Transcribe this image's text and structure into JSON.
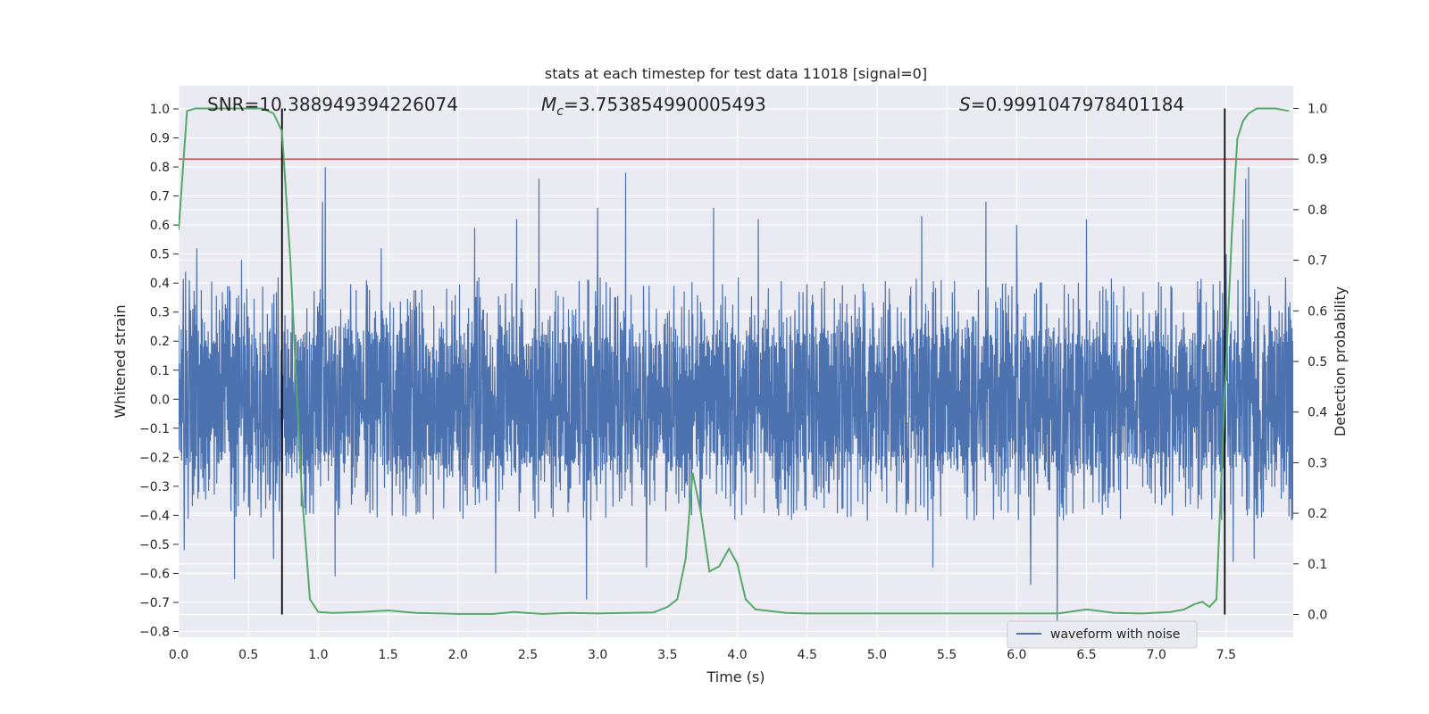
{
  "chart_data": {
    "type": "line",
    "title": "stats at each timestep for test data 11018 [signal=0]",
    "xlabel": "Time (s)",
    "ylabel": "Whitened strain",
    "y2label": "Detection probability",
    "xlim": [
      0,
      7.98
    ],
    "ylim": [
      -0.82,
      1.08
    ],
    "y2lim": [
      -0.045,
      1.045
    ],
    "xticks": [
      "0.0",
      "0.5",
      "1.0",
      "1.5",
      "2.0",
      "2.5",
      "3.0",
      "3.5",
      "4.0",
      "4.5",
      "5.0",
      "5.5",
      "6.0",
      "6.5",
      "7.0",
      "7.5"
    ],
    "yticks": [
      "1.0",
      "0.9",
      "0.8",
      "0.7",
      "0.6",
      "0.5",
      "0.4",
      "0.3",
      "0.2",
      "0.1",
      "0.0",
      "−0.1",
      "−0.2",
      "−0.3",
      "−0.4",
      "−0.5",
      "−0.6",
      "−0.7",
      "−0.8"
    ],
    "y2ticks": [
      "1.0",
      "0.9",
      "0.8",
      "0.7",
      "0.6",
      "0.5",
      "0.4",
      "0.3",
      "0.2",
      "0.1",
      "0.0"
    ],
    "grid": true,
    "legend_position": "lower-right",
    "annotations": {
      "snr": "SNR=10.388949394226074",
      "mc_symbol": "M",
      "mc_sub": "c",
      "mc_value": "=3.753854990005493",
      "s_symbol": "S",
      "s_value": "=0.9991047978401184"
    },
    "threshold_probability": 0.9,
    "vertical_lines_x": [
      0.74,
      7.49
    ],
    "series": [
      {
        "name": "waveform with noise",
        "kind": "noise",
        "color": "#4c72b0",
        "envelope": {
          "typical_max": 0.42,
          "typical_min": -0.43,
          "peaks": [
            {
              "x": 0.05,
              "y": 0.44
            },
            {
              "x": 0.13,
              "y": 0.52
            },
            {
              "x": 0.45,
              "y": 0.48
            },
            {
              "x": 1.03,
              "y": 0.68
            },
            {
              "x": 1.05,
              "y": 0.8
            },
            {
              "x": 1.45,
              "y": 0.52
            },
            {
              "x": 2.12,
              "y": 0.59
            },
            {
              "x": 2.42,
              "y": 0.62
            },
            {
              "x": 2.58,
              "y": 0.76
            },
            {
              "x": 3.0,
              "y": 0.66
            },
            {
              "x": 3.2,
              "y": 0.78
            },
            {
              "x": 3.83,
              "y": 0.66
            },
            {
              "x": 4.15,
              "y": 0.62
            },
            {
              "x": 5.32,
              "y": 0.63
            },
            {
              "x": 5.78,
              "y": 0.68
            },
            {
              "x": 6.0,
              "y": 0.6
            },
            {
              "x": 6.5,
              "y": 0.62
            },
            {
              "x": 7.5,
              "y": 0.5
            },
            {
              "x": 7.62,
              "y": 0.62
            },
            {
              "x": 7.64,
              "y": 0.76
            },
            {
              "x": 7.66,
              "y": 0.8
            }
          ],
          "troughs": [
            {
              "x": 0.04,
              "y": -0.52
            },
            {
              "x": 0.4,
              "y": -0.62
            },
            {
              "x": 0.68,
              "y": -0.55
            },
            {
              "x": 1.12,
              "y": -0.61
            },
            {
              "x": 2.27,
              "y": -0.6
            },
            {
              "x": 2.92,
              "y": -0.69
            },
            {
              "x": 3.35,
              "y": -0.58
            },
            {
              "x": 5.4,
              "y": -0.58
            },
            {
              "x": 6.1,
              "y": -0.64
            },
            {
              "x": 6.29,
              "y": -0.77
            },
            {
              "x": 7.55,
              "y": -0.56
            },
            {
              "x": 7.7,
              "y": -0.55
            }
          ]
        }
      },
      {
        "name": "",
        "kind": "probability",
        "color": "#55a868",
        "x": [
          0.0,
          0.06,
          0.12,
          0.5,
          0.6,
          0.68,
          0.74,
          0.8,
          0.88,
          0.94,
          1.0,
          1.1,
          1.3,
          1.5,
          1.7,
          2.0,
          2.25,
          2.4,
          2.6,
          2.8,
          3.0,
          3.2,
          3.4,
          3.5,
          3.57,
          3.63,
          3.68,
          3.74,
          3.8,
          3.87,
          3.94,
          4.0,
          4.06,
          4.13,
          4.2,
          4.35,
          4.5,
          5.0,
          5.5,
          6.0,
          6.3,
          6.5,
          6.7,
          6.9,
          7.1,
          7.2,
          7.27,
          7.33,
          7.38,
          7.43,
          7.47,
          7.5,
          7.54,
          7.58,
          7.62,
          7.66,
          7.72,
          7.8,
          7.85,
          7.95
        ],
        "y": [
          0.76,
          0.995,
          1.0,
          1.0,
          1.0,
          0.99,
          0.955,
          0.7,
          0.25,
          0.03,
          0.005,
          0.003,
          0.005,
          0.008,
          0.003,
          0.001,
          0.001,
          0.005,
          0.001,
          0.003,
          0.002,
          0.003,
          0.004,
          0.015,
          0.03,
          0.11,
          0.28,
          0.2,
          0.085,
          0.095,
          0.13,
          0.1,
          0.03,
          0.01,
          0.008,
          0.003,
          0.002,
          0.002,
          0.002,
          0.002,
          0.002,
          0.01,
          0.003,
          0.002,
          0.005,
          0.01,
          0.02,
          0.025,
          0.015,
          0.03,
          0.3,
          0.5,
          0.75,
          0.94,
          0.975,
          0.99,
          1.0,
          1.0,
          1.0,
          0.995
        ]
      }
    ]
  }
}
